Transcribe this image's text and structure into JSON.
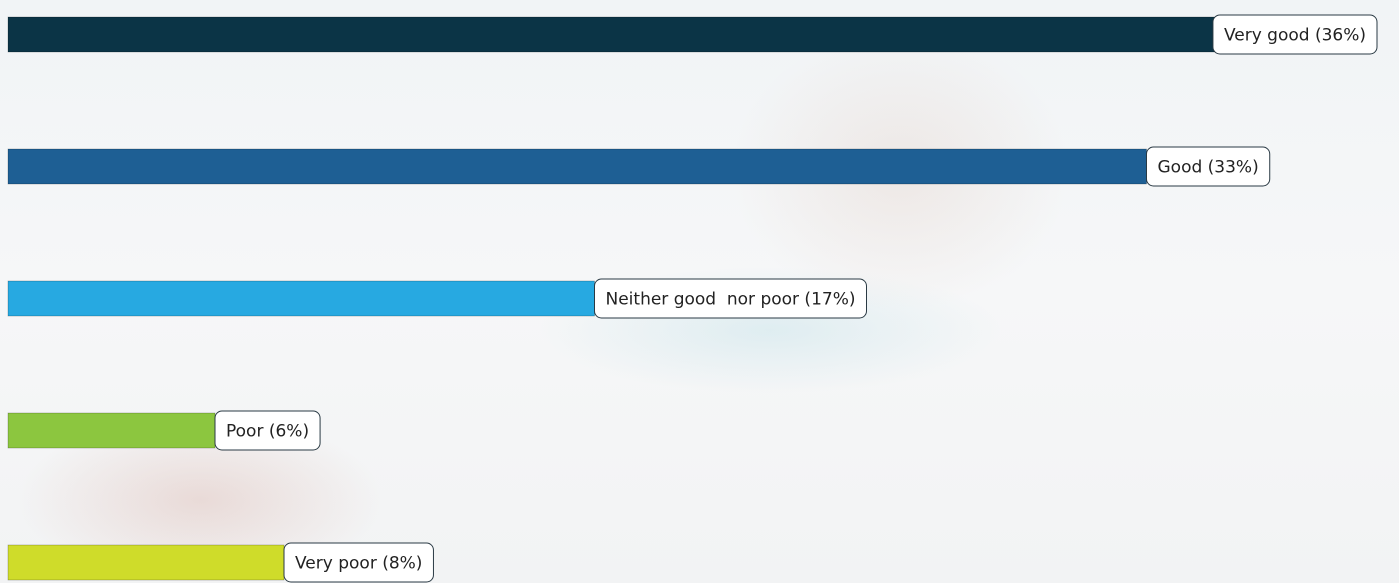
{
  "chart_data": {
    "type": "bar",
    "orientation": "horizontal",
    "values": [
      36,
      33,
      17,
      6,
      8
    ],
    "value_labels": [
      "Very good (36%)",
      "Good (33%)",
      "Neither good  nor poor (17%)",
      "Poor (6%)",
      "Very poor (8%)"
    ],
    "colors": [
      "#0b3446",
      "#1e5f94",
      "#27a9e1",
      "#8cc63f",
      "#cfdc2a"
    ],
    "xlim": [
      0,
      40
    ]
  }
}
